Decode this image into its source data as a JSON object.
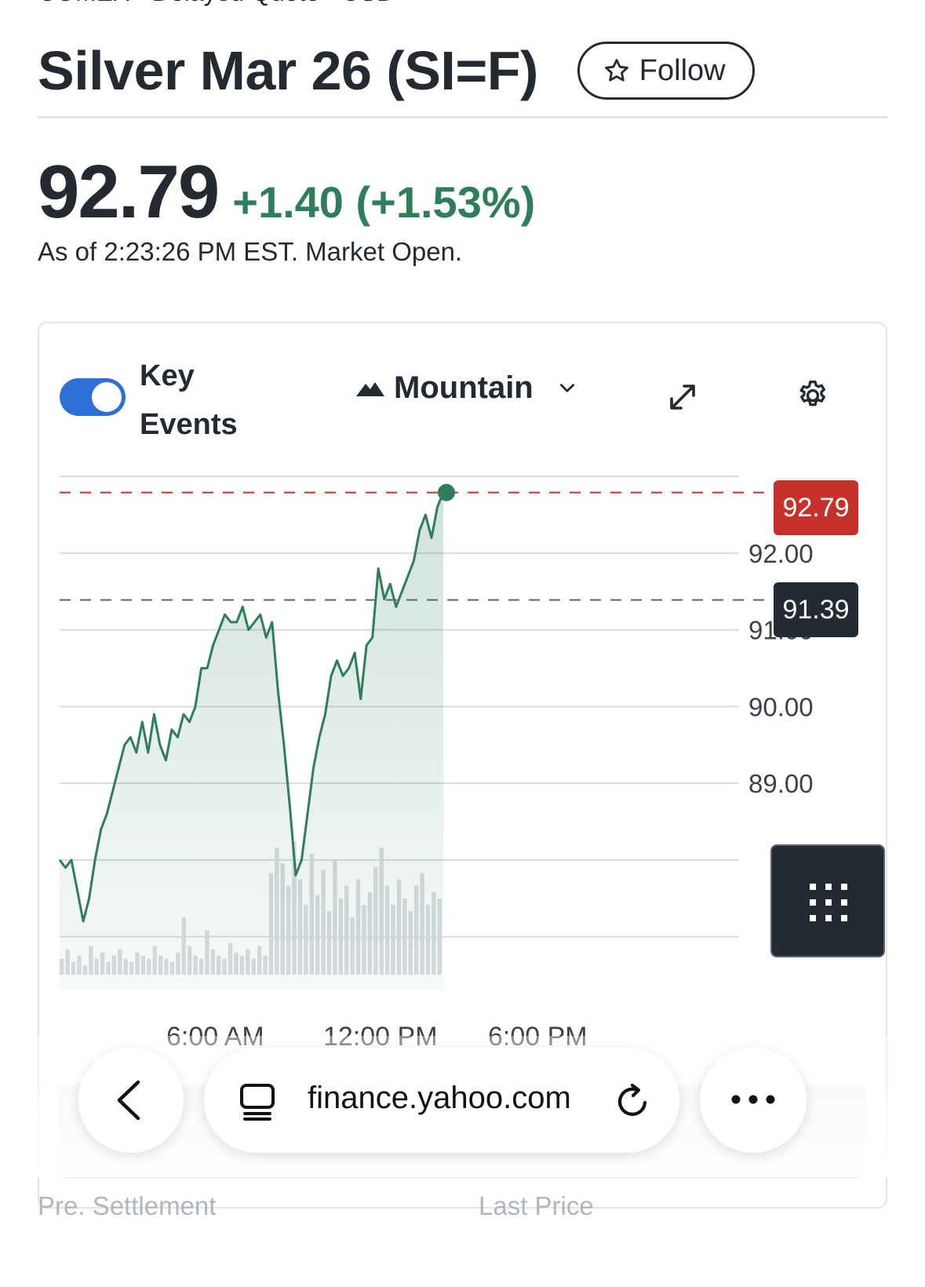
{
  "header": {
    "exchange_line": "COMEX - Delayed Quote - USD",
    "title": "Silver Mar 26 (SI=F)",
    "follow_label": "Follow"
  },
  "quote": {
    "price": "92.79",
    "change": "+1.40 (+1.53%)",
    "as_of": "As of 2:23:26 PM EST. Market Open."
  },
  "chart_controls": {
    "key_events_label": "Key Events",
    "key_events_on": true,
    "chart_type": "Mountain"
  },
  "price_tags": {
    "current": "92.79",
    "previous_close": "91.39"
  },
  "chart_data": {
    "type": "area",
    "y_tick_labels": [
      "92.00",
      "91.00",
      "90.00",
      "89.00"
    ],
    "x_tick_labels": [
      "6:00 AM",
      "12:00 PM",
      "6:00 PM"
    ],
    "ylim": [
      86.3,
      92.95
    ],
    "current_price": 92.79,
    "previous_close": 91.39,
    "series": [
      {
        "values": [
          88.0,
          87.9,
          88.0,
          87.6,
          87.2,
          87.5,
          88.0,
          88.4,
          88.6,
          88.9,
          89.2,
          89.5,
          89.6,
          89.4,
          89.8,
          89.4,
          89.9,
          89.5,
          89.3,
          89.7,
          89.6,
          89.9,
          89.8,
          90.0,
          90.5,
          90.5,
          90.8,
          91.0,
          91.2,
          91.1,
          91.1,
          91.3,
          91.0,
          91.1,
          91.2,
          90.9,
          91.1,
          90.2,
          89.5,
          88.7,
          87.8,
          88.0,
          88.6,
          89.2,
          89.6,
          89.9,
          90.4,
          90.6,
          90.4,
          90.5,
          90.7,
          90.1,
          90.8,
          90.9,
          91.8,
          91.4,
          91.6,
          91.3,
          91.5,
          91.7,
          91.9,
          92.3,
          92.5,
          92.2,
          92.6,
          92.79
        ],
        "color": "#2e7d5b"
      }
    ],
    "volume": [
      5,
      8,
      4,
      6,
      3,
      9,
      5,
      7,
      4,
      6,
      8,
      5,
      4,
      7,
      6,
      5,
      9,
      6,
      5,
      4,
      7,
      18,
      9,
      6,
      5,
      14,
      8,
      6,
      5,
      10,
      7,
      6,
      8,
      5,
      9,
      6,
      32,
      40,
      35,
      28,
      42,
      30,
      22,
      38,
      25,
      33,
      20,
      36,
      24,
      28,
      18,
      30,
      22,
      26,
      34,
      40,
      28,
      22,
      30,
      24,
      20,
      28,
      32,
      22,
      26,
      24
    ]
  },
  "browser": {
    "url": "finance.yahoo.com"
  },
  "footer": {
    "pre_settlement_label": "Pre. Settlement",
    "last_price_label": "Last Price"
  }
}
